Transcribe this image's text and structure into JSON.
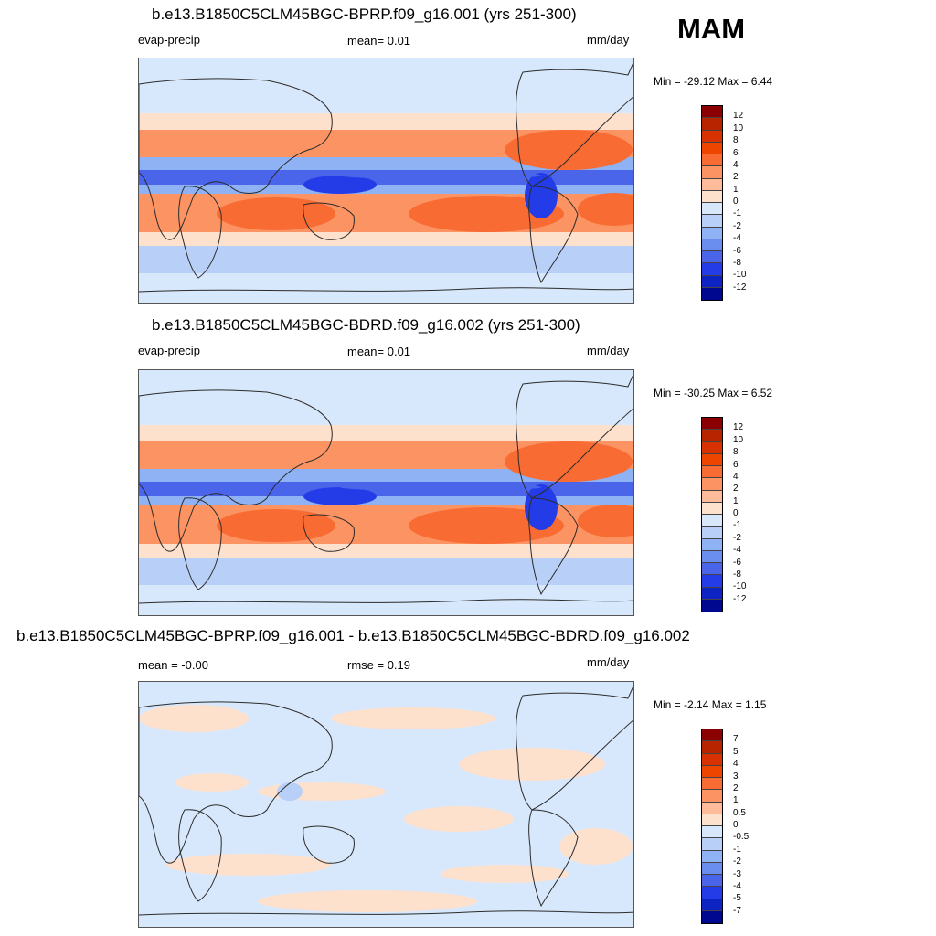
{
  "season": "MAM",
  "colors": {
    "main_bar": [
      "#8b0000",
      "#b82300",
      "#d83200",
      "#ee4600",
      "#f86b33",
      "#fb9363",
      "#fdbb9a",
      "#fee1cd",
      "#d8e8fc",
      "#b8d0f7",
      "#8eb2f3",
      "#6a8ef0",
      "#4a64ea",
      "#243ce8",
      "#0d23c2",
      "#00088f"
    ],
    "diff_bar": [
      "#8b0000",
      "#b82300",
      "#d83200",
      "#ee4600",
      "#f86b33",
      "#fb9363",
      "#fdbb9a",
      "#fee1cd",
      "#d8e8fc",
      "#b8d0f7",
      "#8eb2f3",
      "#6a8ef0",
      "#4a64ea",
      "#243ce8",
      "#0d23c2",
      "#00088f"
    ],
    "ocean_neutral": "#d7e7fb",
    "coast": "#2b2b2b"
  },
  "panels": [
    {
      "title": "b.e13.B1850C5CLM45BGC-BPRP.f09_g16.001 (yrs 251-300)",
      "left_label": "evap-precip",
      "center_label": "mean=   0.01",
      "units": "mm/day",
      "minmax": "Min = -29.12 Max =   6.44",
      "ticks": [
        "12",
        "10",
        "8",
        "6",
        "4",
        "2",
        "1",
        "0",
        "-1",
        "-2",
        "-4",
        "-6",
        "-8",
        "-10",
        "-12"
      ]
    },
    {
      "title": "b.e13.B1850C5CLM45BGC-BDRD.f09_g16.002 (yrs 251-300)",
      "left_label": "evap-precip",
      "center_label": "mean=   0.01",
      "units": "mm/day",
      "minmax": "Min = -30.25 Max =   6.52",
      "ticks": [
        "12",
        "10",
        "8",
        "6",
        "4",
        "2",
        "1",
        "0",
        "-1",
        "-2",
        "-4",
        "-6",
        "-8",
        "-10",
        "-12"
      ]
    },
    {
      "title": "b.e13.B1850C5CLM45BGC-BPRP.f09_g16.001 - b.e13.B1850C5CLM45BGC-BDRD.f09_g16.002",
      "left_label": "mean =  -0.00",
      "center_label": "rmse =   0.19",
      "units": "mm/day",
      "minmax": "Min =  -2.14 Max =   1.15",
      "ticks": [
        "7",
        "5",
        "4",
        "3",
        "2",
        "1",
        "0.5",
        "0",
        "-0.5",
        "-1",
        "-2",
        "-3",
        "-4",
        "-5",
        "-7"
      ]
    }
  ]
}
